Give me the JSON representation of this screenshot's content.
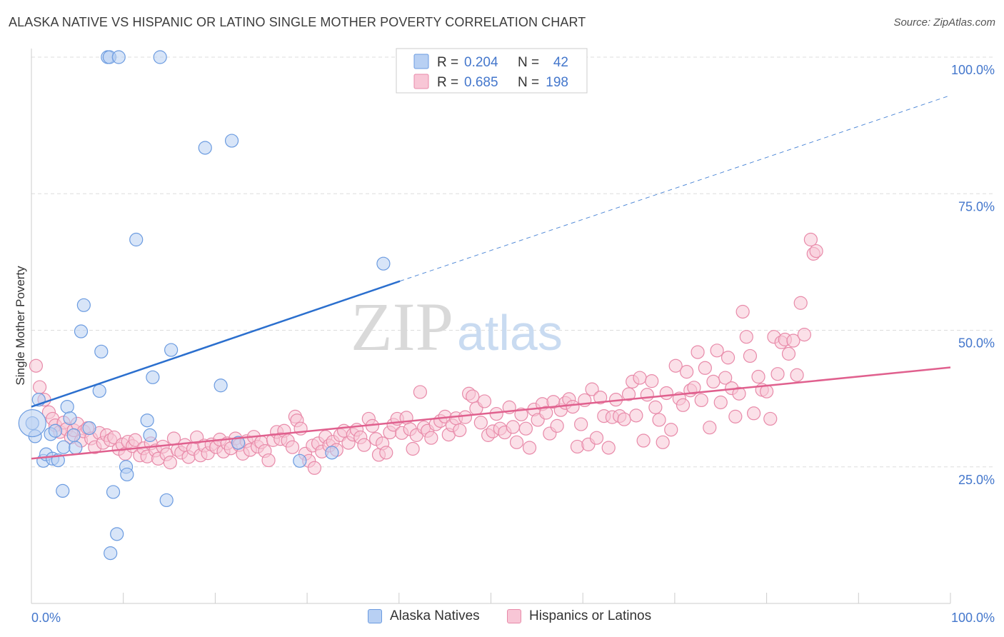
{
  "title": "ALASKA NATIVE VS HISPANIC OR LATINO SINGLE MOTHER POVERTY CORRELATION CHART",
  "source": "Source: ZipAtlas.com",
  "watermark": {
    "zip": "ZIP",
    "atlas": "atlas"
  },
  "colors": {
    "blue_fill": "#b8d0f3",
    "blue_stroke": "#6b9be0",
    "blue_line": "#2b6fce",
    "pink_fill": "#f8c6d6",
    "pink_stroke": "#e88aa9",
    "pink_line": "#e0608e",
    "tick_label": "#4477cc",
    "grid": "#dddddd"
  },
  "legend_top": [
    {
      "r_label": "R = ",
      "r_value": "0.204",
      "n_label": "N = ",
      "n_value": "42",
      "series": "blue"
    },
    {
      "r_label": "R = ",
      "r_value": "0.685",
      "n_label": "N = ",
      "n_value": "198",
      "series": "pink"
    }
  ],
  "legend_bottom": [
    {
      "label": "Alaska Natives",
      "series": "blue"
    },
    {
      "label": "Hispanics or Latinos",
      "series": "pink"
    }
  ],
  "chart_data": {
    "type": "scatter",
    "title": "ALASKA NATIVE VS HISPANIC OR LATINO SINGLE MOTHER POVERTY CORRELATION CHART",
    "xlabel": "",
    "ylabel": "Single Mother Poverty",
    "xlim": [
      0,
      100
    ],
    "ylim": [
      0,
      100
    ],
    "x_tick_labels": [
      "0.0%",
      "100.0%"
    ],
    "y_ticks": [
      {
        "value": 25,
        "label": "25.0%"
      },
      {
        "value": 50,
        "label": "50.0%"
      },
      {
        "value": 75,
        "label": "75.0%"
      },
      {
        "value": 100,
        "label": "100.0%"
      }
    ],
    "grid": true,
    "legend_position": "top-center",
    "series": [
      {
        "name": "Alaska Natives",
        "color": "#b8d0f3",
        "r": 0.204,
        "n": 42,
        "trend": {
          "x": [
            0,
            40.1
          ],
          "y": [
            36,
            59
          ],
          "dashed_to": [
            100,
            93
          ]
        },
        "points": [
          [
            0.4,
            30.6
          ],
          [
            0.8,
            37.3
          ],
          [
            1.3,
            26.1
          ],
          [
            1.6,
            27.3
          ],
          [
            2.1,
            31.0
          ],
          [
            2.3,
            26.5
          ],
          [
            2.6,
            31.6
          ],
          [
            2.9,
            26.2
          ],
          [
            3.4,
            20.6
          ],
          [
            3.5,
            28.6
          ],
          [
            3.9,
            36.0
          ],
          [
            4.2,
            33.9
          ],
          [
            4.6,
            30.8
          ],
          [
            4.8,
            28.5
          ],
          [
            5.4,
            49.8
          ],
          [
            5.7,
            54.6
          ],
          [
            6.3,
            32.1
          ],
          [
            7.4,
            38.9
          ],
          [
            7.6,
            46.1
          ],
          [
            8.3,
            100
          ],
          [
            8.5,
            100
          ],
          [
            8.6,
            9.2
          ],
          [
            8.9,
            20.4
          ],
          [
            9.3,
            12.7
          ],
          [
            10.3,
            25.0
          ],
          [
            10.4,
            23.6
          ],
          [
            11.4,
            66.6
          ],
          [
            12.6,
            33.5
          ],
          [
            12.9,
            30.8
          ],
          [
            13.2,
            41.4
          ],
          [
            14.0,
            100
          ],
          [
            14.7,
            18.9
          ],
          [
            15.2,
            46.4
          ],
          [
            18.9,
            83.4
          ],
          [
            20.6,
            39.9
          ],
          [
            21.8,
            84.7
          ],
          [
            22.5,
            29.4
          ],
          [
            29.2,
            26.1
          ],
          [
            32.7,
            27.6
          ],
          [
            38.3,
            62.2
          ],
          [
            0.1,
            33.0
          ],
          [
            9.5,
            100
          ]
        ]
      },
      {
        "name": "Hispanics or Latinos",
        "color": "#f8c6d6",
        "r": 0.685,
        "n": 198,
        "trend": {
          "x": [
            0,
            100
          ],
          "y": [
            26.5,
            43.2
          ]
        },
        "points": [
          [
            0.5,
            43.5
          ],
          [
            0.9,
            39.6
          ],
          [
            1.4,
            37.3
          ],
          [
            1.9,
            35.0
          ],
          [
            2.3,
            33.8
          ],
          [
            2.6,
            32.6
          ],
          [
            3.1,
            31.4
          ],
          [
            3.5,
            33.1
          ],
          [
            3.8,
            31.9
          ],
          [
            4.3,
            30.4
          ],
          [
            4.6,
            31.7
          ],
          [
            5.0,
            32.9
          ],
          [
            5.4,
            29.8
          ],
          [
            5.7,
            31.5
          ],
          [
            6.1,
            32.1
          ],
          [
            6.5,
            30.2
          ],
          [
            6.9,
            28.6
          ],
          [
            7.4,
            31.2
          ],
          [
            7.8,
            29.4
          ],
          [
            8.2,
            30.8
          ],
          [
            8.6,
            29.9
          ],
          [
            9.0,
            30.4
          ],
          [
            9.5,
            28.3
          ],
          [
            9.9,
            29.1
          ],
          [
            10.2,
            27.4
          ],
          [
            10.5,
            29.6
          ],
          [
            11.0,
            28.8
          ],
          [
            11.3,
            29.9
          ],
          [
            11.8,
            27.1
          ],
          [
            12.2,
            28.4
          ],
          [
            12.6,
            26.9
          ],
          [
            13.0,
            29.3
          ],
          [
            13.5,
            28.0
          ],
          [
            13.8,
            26.5
          ],
          [
            14.3,
            28.7
          ],
          [
            14.7,
            27.3
          ],
          [
            15.1,
            25.8
          ],
          [
            15.5,
            30.2
          ],
          [
            15.9,
            28.1
          ],
          [
            16.3,
            27.6
          ],
          [
            16.7,
            29.0
          ],
          [
            17.1,
            26.8
          ],
          [
            17.6,
            28.3
          ],
          [
            18.0,
            30.4
          ],
          [
            18.4,
            27.1
          ],
          [
            18.8,
            28.9
          ],
          [
            19.2,
            27.5
          ],
          [
            19.6,
            29.1
          ],
          [
            20.1,
            28.6
          ],
          [
            20.5,
            30.0
          ],
          [
            20.9,
            27.8
          ],
          [
            21.3,
            29.3
          ],
          [
            21.7,
            28.4
          ],
          [
            22.2,
            30.2
          ],
          [
            22.6,
            29.0
          ],
          [
            23.0,
            27.4
          ],
          [
            23.4,
            29.7
          ],
          [
            23.8,
            28.1
          ],
          [
            24.2,
            30.5
          ],
          [
            24.6,
            28.7
          ],
          [
            25.0,
            29.5
          ],
          [
            25.4,
            27.9
          ],
          [
            25.8,
            26.2
          ],
          [
            26.3,
            29.9
          ],
          [
            26.7,
            31.4
          ],
          [
            27.1,
            30.1
          ],
          [
            27.5,
            31.6
          ],
          [
            27.9,
            29.8
          ],
          [
            28.4,
            28.6
          ],
          [
            28.7,
            34.2
          ],
          [
            28.9,
            33.5
          ],
          [
            29.3,
            32.0
          ],
          [
            29.8,
            27.4
          ],
          [
            30.2,
            26.1
          ],
          [
            30.6,
            28.9
          ],
          [
            30.8,
            24.8
          ],
          [
            31.2,
            29.3
          ],
          [
            31.6,
            27.8
          ],
          [
            32.0,
            30.5
          ],
          [
            32.4,
            28.9
          ],
          [
            32.8,
            29.6
          ],
          [
            33.2,
            28.1
          ],
          [
            33.6,
            30.8
          ],
          [
            34.0,
            31.6
          ],
          [
            34.5,
            29.4
          ],
          [
            35.0,
            30.9
          ],
          [
            35.4,
            31.8
          ],
          [
            35.8,
            30.4
          ],
          [
            36.2,
            29.0
          ],
          [
            36.7,
            33.8
          ],
          [
            37.1,
            32.5
          ],
          [
            37.5,
            30.1
          ],
          [
            37.8,
            27.2
          ],
          [
            38.2,
            29.3
          ],
          [
            38.6,
            27.6
          ],
          [
            39.0,
            31.3
          ],
          [
            39.4,
            32.7
          ],
          [
            39.8,
            33.8
          ],
          [
            40.3,
            31.2
          ],
          [
            40.8,
            34.0
          ],
          [
            41.2,
            31.9
          ],
          [
            41.5,
            28.3
          ],
          [
            41.9,
            30.8
          ],
          [
            42.3,
            38.7
          ],
          [
            42.7,
            32.2
          ],
          [
            43.1,
            31.6
          ],
          [
            43.5,
            30.3
          ],
          [
            44.0,
            32.8
          ],
          [
            44.5,
            33.4
          ],
          [
            45.0,
            34.2
          ],
          [
            45.4,
            30.9
          ],
          [
            45.8,
            32.6
          ],
          [
            46.2,
            33.9
          ],
          [
            46.6,
            31.7
          ],
          [
            47.2,
            34.1
          ],
          [
            47.6,
            38.4
          ],
          [
            48.0,
            37.9
          ],
          [
            48.4,
            35.7
          ],
          [
            48.9,
            33.1
          ],
          [
            49.3,
            37.0
          ],
          [
            49.7,
            30.8
          ],
          [
            50.2,
            31.5
          ],
          [
            50.6,
            34.7
          ],
          [
            51.0,
            32.0
          ],
          [
            51.5,
            31.3
          ],
          [
            52.0,
            35.9
          ],
          [
            52.4,
            32.3
          ],
          [
            52.8,
            29.5
          ],
          [
            53.3,
            34.6
          ],
          [
            53.8,
            32.0
          ],
          [
            54.2,
            28.5
          ],
          [
            54.7,
            35.5
          ],
          [
            55.1,
            33.6
          ],
          [
            55.6,
            36.5
          ],
          [
            56.0,
            34.9
          ],
          [
            56.4,
            31.1
          ],
          [
            56.8,
            36.9
          ],
          [
            57.2,
            32.5
          ],
          [
            57.6,
            35.4
          ],
          [
            58.1,
            36.7
          ],
          [
            58.5,
            37.4
          ],
          [
            58.9,
            36.0
          ],
          [
            59.4,
            28.7
          ],
          [
            59.8,
            32.8
          ],
          [
            60.2,
            37.2
          ],
          [
            60.6,
            29.1
          ],
          [
            61.0,
            39.2
          ],
          [
            61.5,
            30.3
          ],
          [
            61.9,
            37.7
          ],
          [
            62.3,
            34.3
          ],
          [
            62.8,
            28.5
          ],
          [
            63.2,
            34.1
          ],
          [
            63.6,
            37.3
          ],
          [
            64.0,
            34.3
          ],
          [
            64.5,
            33.7
          ],
          [
            65.0,
            38.3
          ],
          [
            65.4,
            40.6
          ],
          [
            65.8,
            34.4
          ],
          [
            66.2,
            41.3
          ],
          [
            66.6,
            29.8
          ],
          [
            67.0,
            38.2
          ],
          [
            67.5,
            40.7
          ],
          [
            67.9,
            35.9
          ],
          [
            68.3,
            33.6
          ],
          [
            68.7,
            29.5
          ],
          [
            69.1,
            38.5
          ],
          [
            69.6,
            31.8
          ],
          [
            70.1,
            43.5
          ],
          [
            70.5,
            37.5
          ],
          [
            70.9,
            36.3
          ],
          [
            71.3,
            42.4
          ],
          [
            71.7,
            39.0
          ],
          [
            72.1,
            39.5
          ],
          [
            72.5,
            46.0
          ],
          [
            72.9,
            37.2
          ],
          [
            73.3,
            43.1
          ],
          [
            73.8,
            32.2
          ],
          [
            74.2,
            40.6
          ],
          [
            74.6,
            46.3
          ],
          [
            75.0,
            36.8
          ],
          [
            75.5,
            41.3
          ],
          [
            75.8,
            45.0
          ],
          [
            76.2,
            39.4
          ],
          [
            76.6,
            34.2
          ],
          [
            77.0,
            38.4
          ],
          [
            77.4,
            53.4
          ],
          [
            77.8,
            48.8
          ],
          [
            78.2,
            45.3
          ],
          [
            78.6,
            34.8
          ],
          [
            79.1,
            41.5
          ],
          [
            79.5,
            39.1
          ],
          [
            80.0,
            38.8
          ],
          [
            80.4,
            33.8
          ],
          [
            80.8,
            48.8
          ],
          [
            81.2,
            42.0
          ],
          [
            81.6,
            47.8
          ],
          [
            82.0,
            48.3
          ],
          [
            82.4,
            45.7
          ],
          [
            82.9,
            48.1
          ],
          [
            83.3,
            41.8
          ],
          [
            83.7,
            55.0
          ],
          [
            84.1,
            49.2
          ],
          [
            84.8,
            66.6
          ],
          [
            85.1,
            64.0
          ],
          [
            85.4,
            64.5
          ]
        ]
      }
    ]
  }
}
